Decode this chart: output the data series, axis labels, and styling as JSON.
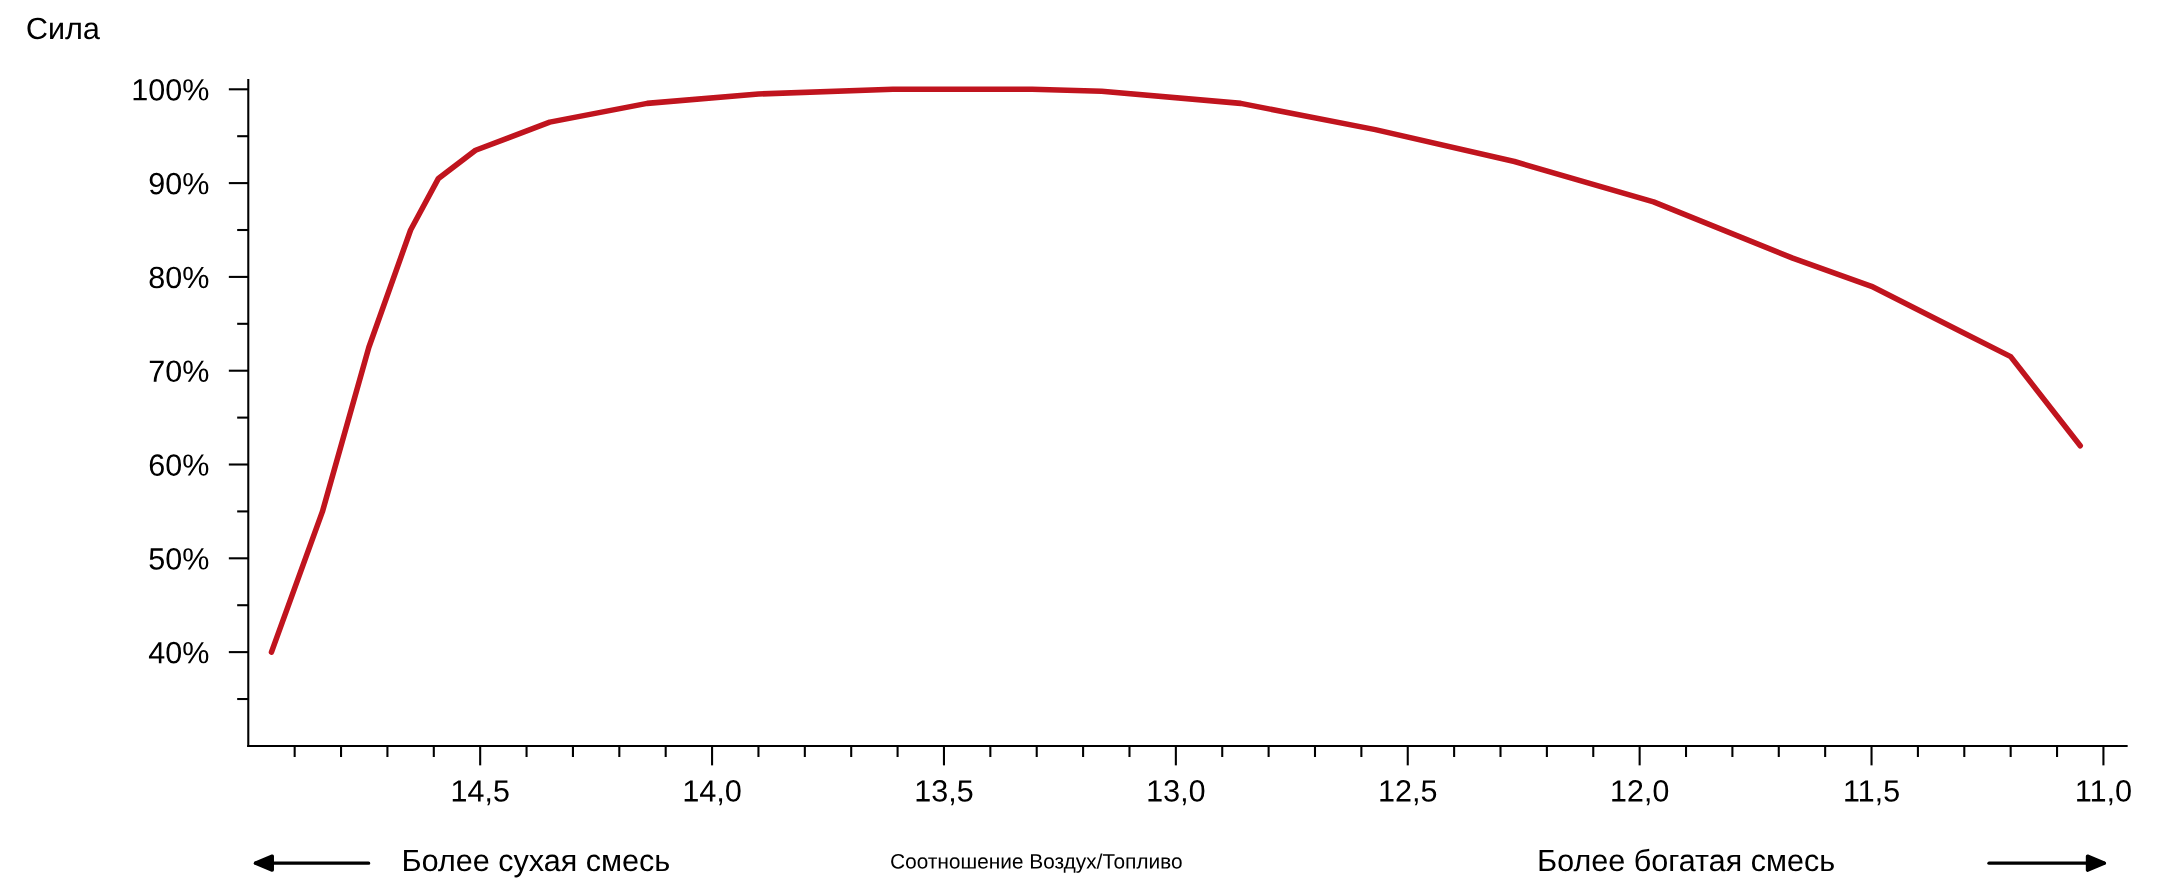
{
  "chart_data": {
    "type": "line",
    "ylabel": "Сила",
    "xlabel": "Соотношение Воздух/Топливо",
    "annotations": [
      "Более сухая смесь",
      "Более богатая смесь"
    ],
    "series": [
      {
        "color": "#c0141e",
        "x": [
          14.95,
          14.84,
          14.74,
          14.65,
          14.59,
          14.51,
          14.35,
          14.14,
          13.9,
          13.61,
          13.31,
          13.16,
          12.86,
          12.57,
          12.27,
          11.97,
          11.67,
          11.5,
          11.3,
          11.2,
          11.05
        ],
        "values": [
          40,
          55,
          72.5,
          85,
          90.5,
          93.5,
          96.5,
          98.5,
          99.5,
          100,
          100,
          99.8,
          98.5,
          95.7,
          92.3,
          88,
          82,
          79,
          74,
          71.5,
          62
        ]
      }
    ],
    "xlim": [
      15.0,
      10.95
    ],
    "ylim": [
      30,
      101
    ],
    "xticks": [
      {
        "value": 14.9,
        "label": null
      },
      {
        "value": 14.8,
        "label": null
      },
      {
        "value": 14.7,
        "label": null
      },
      {
        "value": 14.6,
        "label": null
      },
      {
        "value": 14.5,
        "label": "14,5"
      },
      {
        "value": 14.4,
        "label": null
      },
      {
        "value": 14.3,
        "label": null
      },
      {
        "value": 14.2,
        "label": null
      },
      {
        "value": 14.1,
        "label": null
      },
      {
        "value": 14.0,
        "label": "14,0"
      },
      {
        "value": 13.9,
        "label": null
      },
      {
        "value": 13.8,
        "label": null
      },
      {
        "value": 13.7,
        "label": null
      },
      {
        "value": 13.6,
        "label": null
      },
      {
        "value": 13.5,
        "label": "13,5"
      },
      {
        "value": 13.4,
        "label": null
      },
      {
        "value": 13.3,
        "label": null
      },
      {
        "value": 13.2,
        "label": null
      },
      {
        "value": 13.1,
        "label": null
      },
      {
        "value": 13.0,
        "label": "13,0"
      },
      {
        "value": 12.9,
        "label": null
      },
      {
        "value": 12.8,
        "label": null
      },
      {
        "value": 12.7,
        "label": null
      },
      {
        "value": 12.6,
        "label": null
      },
      {
        "value": 12.5,
        "label": "12,5"
      },
      {
        "value": 12.4,
        "label": null
      },
      {
        "value": 12.3,
        "label": null
      },
      {
        "value": 12.2,
        "label": null
      },
      {
        "value": 12.1,
        "label": null
      },
      {
        "value": 12.0,
        "label": "12,0"
      },
      {
        "value": 11.9,
        "label": null
      },
      {
        "value": 11.8,
        "label": null
      },
      {
        "value": 11.7,
        "label": null
      },
      {
        "value": 11.6,
        "label": null
      },
      {
        "value": 11.5,
        "label": "11,5"
      },
      {
        "value": 11.4,
        "label": null
      },
      {
        "value": 11.3,
        "label": null
      },
      {
        "value": 11.2,
        "label": null
      },
      {
        "value": 11.1,
        "label": null
      },
      {
        "value": 11.0,
        "label": "11,0"
      }
    ],
    "yticks": [
      {
        "value": 35,
        "label": null
      },
      {
        "value": 40,
        "label": "40%"
      },
      {
        "value": 45,
        "label": null
      },
      {
        "value": 50,
        "label": "50%"
      },
      {
        "value": 55,
        "label": null
      },
      {
        "value": 60,
        "label": "60%"
      },
      {
        "value": 65,
        "label": null
      },
      {
        "value": 70,
        "label": "70%"
      },
      {
        "value": 75,
        "label": null
      },
      {
        "value": 80,
        "label": "80%"
      },
      {
        "value": 85,
        "label": null
      },
      {
        "value": 90,
        "label": "90%"
      },
      {
        "value": 95,
        "label": null
      },
      {
        "value": 100,
        "label": "100%"
      }
    ],
    "grid": false,
    "legend": false,
    "marker": "none",
    "line_style": "solid"
  }
}
